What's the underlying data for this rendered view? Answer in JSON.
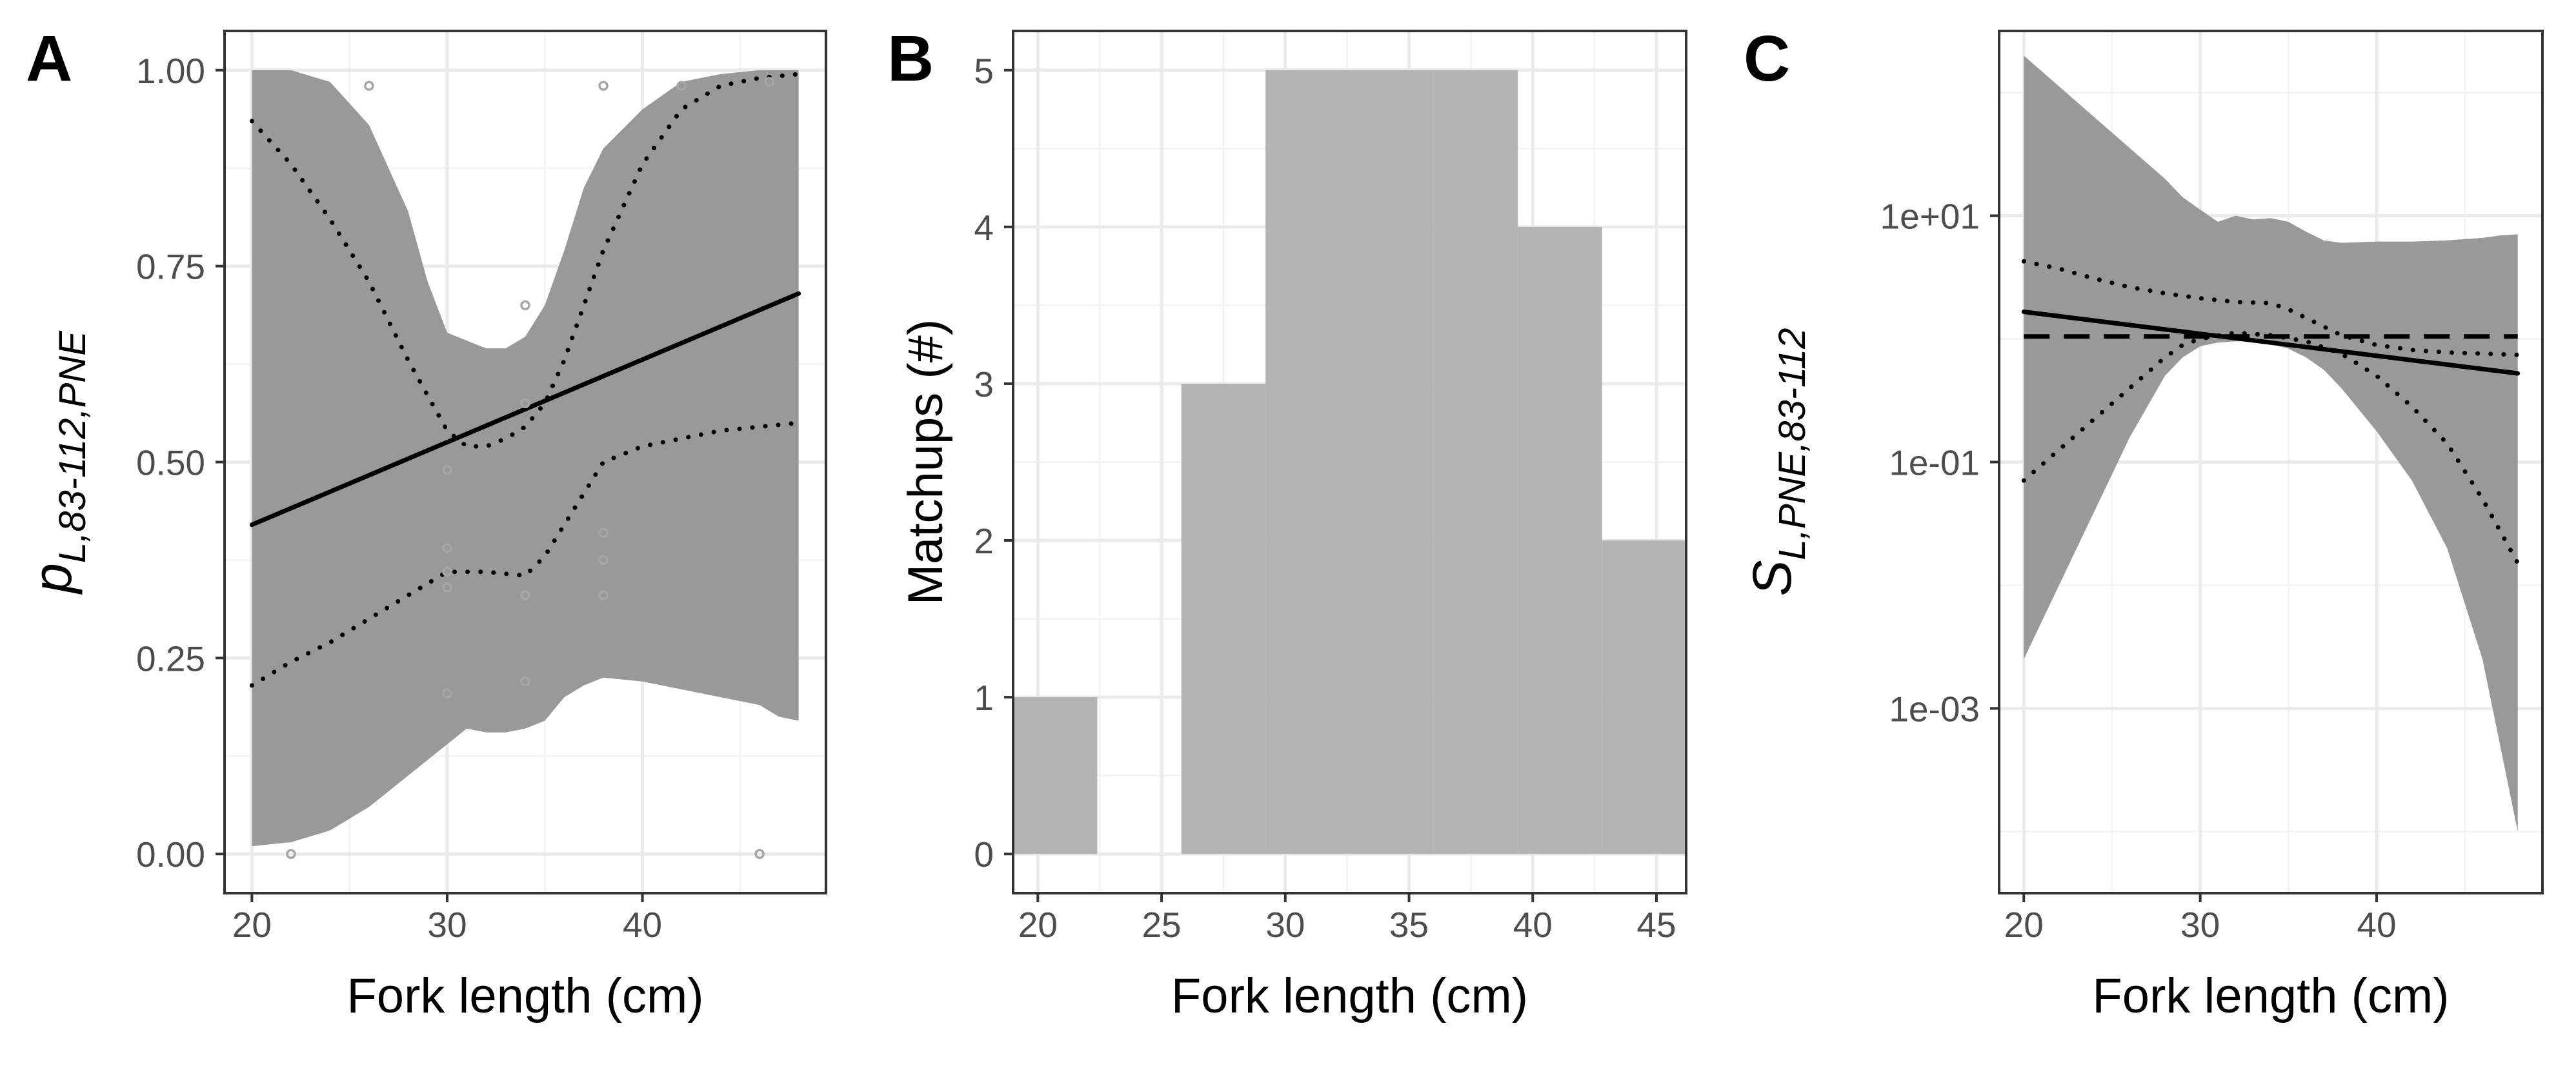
{
  "colors": {
    "panel_border": "#333333",
    "grid_major": "#ebebeb",
    "grid_minor": "#f4f4f4",
    "ribbon": "#999999",
    "bar": "#b3b3b3",
    "line": "#000000",
    "points": "#a6a6a6"
  },
  "chart_data": [
    {
      "type": "line",
      "panel": "A",
      "xlabel": "Fork length (cm)",
      "ylabel_main": "p",
      "ylabel_sub": "L,83-112,PNE",
      "xlim": [
        18.6,
        49.4
      ],
      "ylim": [
        -0.05,
        1.05
      ],
      "xticks": [
        20,
        30,
        40
      ],
      "xtick_labels": [
        "20",
        "30",
        "40"
      ],
      "yticks": [
        0,
        0.25,
        0.5,
        0.75,
        1
      ],
      "ytick_labels": [
        "0.00",
        "0.25",
        "0.50",
        "0.75",
        "1.00"
      ],
      "x": [
        20,
        22,
        24,
        26,
        28,
        29,
        30,
        31,
        32,
        33,
        34,
        35,
        36,
        37,
        38,
        40,
        42,
        44,
        46,
        47,
        48
      ],
      "ribbon_lower": [
        0.01,
        0.015,
        0.03,
        0.06,
        0.1,
        0.12,
        0.14,
        0.16,
        0.155,
        0.155,
        0.16,
        0.17,
        0.2,
        0.215,
        0.225,
        0.22,
        0.21,
        0.2,
        0.19,
        0.175,
        0.17
      ],
      "ribbon_upper": [
        1.0,
        1.0,
        0.985,
        0.93,
        0.82,
        0.73,
        0.665,
        0.655,
        0.645,
        0.645,
        0.66,
        0.7,
        0.77,
        0.85,
        0.9,
        0.95,
        0.985,
        0.995,
        1.0,
        1.0,
        1.0
      ],
      "series": [
        {
          "style": "solid",
          "x": [
            20,
            48
          ],
          "y": [
            0.42,
            0.715
          ]
        },
        {
          "style": "dotted",
          "x": [
            20,
            22,
            24,
            26,
            28,
            30,
            31,
            32,
            33,
            34,
            35,
            36,
            37,
            38,
            40,
            42,
            44,
            46,
            48
          ],
          "y": [
            0.935,
            0.88,
            0.81,
            0.73,
            0.63,
            0.54,
            0.52,
            0.52,
            0.53,
            0.545,
            0.575,
            0.63,
            0.7,
            0.77,
            0.88,
            0.95,
            0.98,
            0.99,
            0.995
          ]
        },
        {
          "style": "dotted",
          "x": [
            20,
            22,
            24,
            26,
            28,
            30,
            32,
            34,
            35,
            36,
            37,
            38,
            40,
            42,
            44,
            46,
            48
          ],
          "y": [
            0.215,
            0.245,
            0.27,
            0.3,
            0.33,
            0.36,
            0.36,
            0.355,
            0.38,
            0.42,
            0.46,
            0.5,
            0.52,
            0.53,
            0.54,
            0.545,
            0.55
          ]
        }
      ],
      "points": [
        {
          "x": 22,
          "y": 0.0
        },
        {
          "x": 26,
          "y": 0.98
        },
        {
          "x": 30,
          "y": 0.49
        },
        {
          "x": 30,
          "y": 0.39
        },
        {
          "x": 30,
          "y": 0.36
        },
        {
          "x": 30,
          "y": 0.34
        },
        {
          "x": 30,
          "y": 0.205
        },
        {
          "x": 34,
          "y": 0.7
        },
        {
          "x": 34,
          "y": 0.575
        },
        {
          "x": 34,
          "y": 0.33
        },
        {
          "x": 34,
          "y": 0.22
        },
        {
          "x": 38,
          "y": 0.98
        },
        {
          "x": 38,
          "y": 0.41
        },
        {
          "x": 38,
          "y": 0.375
        },
        {
          "x": 38,
          "y": 0.33
        },
        {
          "x": 42,
          "y": 0.98
        },
        {
          "x": 46,
          "y": 0.0
        },
        {
          "x": 46.5,
          "y": 0.985
        }
      ]
    },
    {
      "type": "bar",
      "panel": "B",
      "xlabel": "Fork length (cm)",
      "ylabel": "Matchups (#)",
      "xlim": [
        19.0,
        46.2
      ],
      "ylim": [
        -0.25,
        5.25
      ],
      "xticks": [
        20,
        25,
        30,
        35,
        40,
        45
      ],
      "xtick_labels": [
        "20",
        "25",
        "30",
        "35",
        "40",
        "45"
      ],
      "yticks": [
        0,
        1,
        2,
        3,
        4,
        5
      ],
      "ytick_labels": [
        "0",
        "1",
        "2",
        "3",
        "4",
        "5"
      ],
      "bins": [
        {
          "x0": 19.0,
          "x1": 22.4,
          "value": 1
        },
        {
          "x0": 22.4,
          "x1": 25.8,
          "value": 0
        },
        {
          "x0": 25.8,
          "x1": 29.2,
          "value": 3
        },
        {
          "x0": 29.2,
          "x1": 32.6,
          "value": 5
        },
        {
          "x0": 32.6,
          "x1": 36.0,
          "value": 5
        },
        {
          "x0": 36.0,
          "x1": 39.4,
          "value": 5
        },
        {
          "x0": 39.4,
          "x1": 42.8,
          "value": 4
        },
        {
          "x0": 42.8,
          "x1": 46.2,
          "value": 2
        }
      ]
    },
    {
      "type": "line",
      "panel": "C",
      "xlabel": "Fork length (cm)",
      "ylabel_main": "S",
      "ylabel_sub": "L,PNE,83-112",
      "log_y": true,
      "xlim": [
        18.6,
        49.4
      ],
      "ylim_log10": [
        -4.5,
        2.5
      ],
      "xticks": [
        20,
        30,
        40
      ],
      "xtick_labels": [
        "20",
        "30",
        "40"
      ],
      "yticks_log10": [
        -3,
        -1,
        1
      ],
      "ytick_labels": [
        "1e-03",
        "1e-01",
        "1e+01"
      ],
      "x": [
        20,
        22,
        24,
        26,
        28,
        29,
        30,
        31,
        32,
        33,
        34,
        35,
        36,
        37,
        38,
        40,
        42,
        44,
        46,
        47,
        48
      ],
      "ribbon_lower_log10": [
        -2.6,
        -2.0,
        -1.4,
        -0.8,
        -0.3,
        -0.15,
        -0.06,
        -0.03,
        -0.02,
        -0.02,
        -0.04,
        -0.08,
        -0.15,
        -0.25,
        -0.4,
        -0.75,
        -1.15,
        -1.7,
        -2.6,
        -3.3,
        -4.0
      ],
      "ribbon_upper_log10": [
        2.3,
        2.05,
        1.8,
        1.55,
        1.3,
        1.15,
        1.05,
        0.95,
        1.0,
        0.97,
        0.98,
        0.95,
        0.87,
        0.8,
        0.78,
        0.79,
        0.79,
        0.8,
        0.82,
        0.84,
        0.85
      ],
      "series": [
        {
          "style": "dashed",
          "x": [
            20,
            48
          ],
          "y_log10": [
            0.02,
            0.02
          ]
        },
        {
          "style": "solid",
          "x": [
            20,
            48
          ],
          "y_log10": [
            0.22,
            -0.28
          ]
        },
        {
          "style": "dotted",
          "x": [
            20,
            22,
            24,
            26,
            28,
            30,
            32,
            34,
            35,
            36,
            38,
            40,
            42,
            44,
            46,
            48
          ],
          "y_log10": [
            0.63,
            0.57,
            0.49,
            0.42,
            0.37,
            0.33,
            0.3,
            0.29,
            0.24,
            0.17,
            0.03,
            -0.05,
            -0.09,
            -0.11,
            -0.12,
            -0.13
          ]
        },
        {
          "style": "dotted",
          "x": [
            20,
            22,
            24,
            26,
            28,
            29,
            30,
            32,
            34,
            36,
            38,
            40,
            42,
            44,
            46,
            48
          ],
          "y_log10": [
            -1.15,
            -0.9,
            -0.65,
            -0.4,
            -0.15,
            -0.05,
            0.0,
            0.05,
            0.03,
            -0.02,
            -0.12,
            -0.3,
            -0.55,
            -0.85,
            -1.3,
            -1.82
          ]
        }
      ]
    }
  ],
  "panels": [
    {
      "letter": "A"
    },
    {
      "letter": "B"
    },
    {
      "letter": "C"
    }
  ]
}
